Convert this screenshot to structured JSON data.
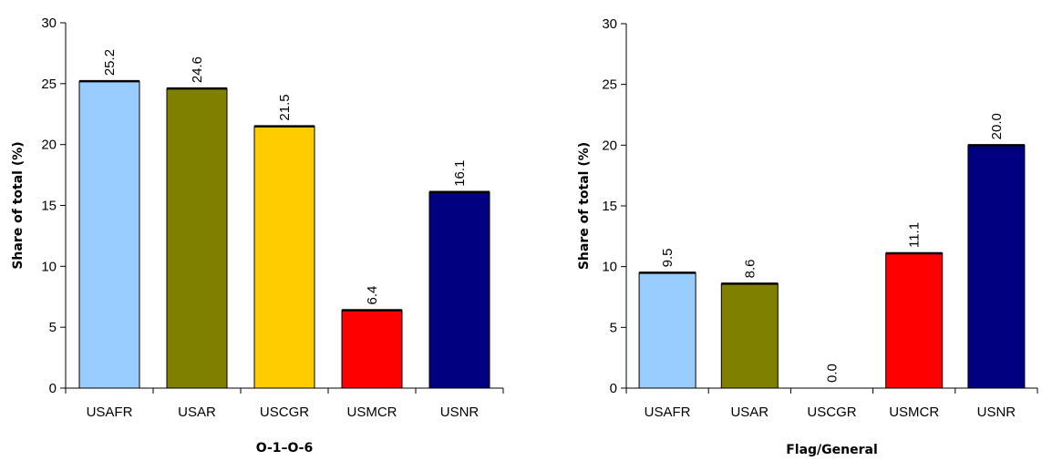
{
  "chart_data": [
    {
      "type": "bar",
      "categories": [
        "USAFR",
        "USAR",
        "USCGR",
        "USMCR",
        "USNR"
      ],
      "values": [
        25.2,
        24.6,
        21.5,
        6.4,
        16.1
      ],
      "value_labels": [
        "25.2",
        "24.6",
        "21.5",
        "6.4",
        "16.1"
      ],
      "colors": [
        "#99ccff",
        "#808000",
        "#ffcc00",
        "#ff0000",
        "#000080"
      ],
      "xlabel": "O-1–O-6",
      "ylabel": "Share of total (%)",
      "ylim": [
        0,
        30
      ],
      "yticks": [
        "0",
        "5",
        "10",
        "15",
        "20",
        "25",
        "30"
      ],
      "grid": false,
      "legend": "none"
    },
    {
      "type": "bar",
      "categories": [
        "USAFR",
        "USAR",
        "USCGR",
        "USMCR",
        "USNR"
      ],
      "values": [
        9.5,
        8.6,
        0.0,
        11.1,
        20.0
      ],
      "value_labels": [
        "9.5",
        "8.6",
        "0.0",
        "11.1",
        "20.0"
      ],
      "colors": [
        "#99ccff",
        "#808000",
        "#ffcc00",
        "#ff0000",
        "#000080"
      ],
      "xlabel": "Flag/General",
      "ylabel": "Share of total (%)",
      "ylim": [
        0,
        30
      ],
      "yticks": [
        "0",
        "5",
        "10",
        "15",
        "20",
        "25",
        "30"
      ],
      "grid": false,
      "legend": "none"
    }
  ]
}
